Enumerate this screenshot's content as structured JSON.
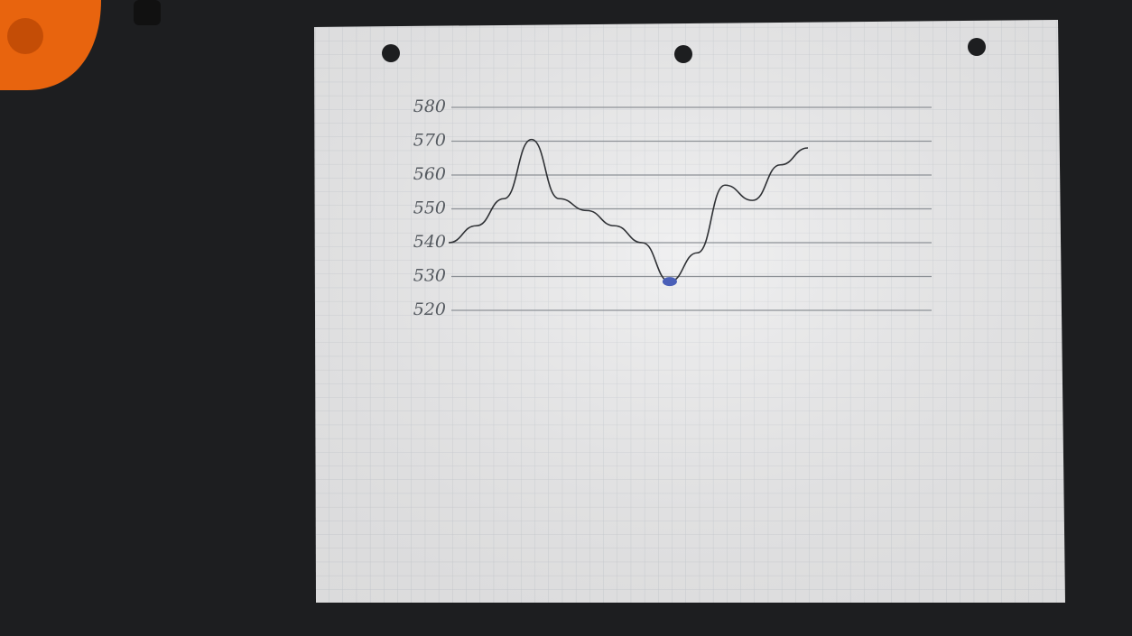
{
  "chart_data": {
    "type": "line",
    "categories": [
      null,
      null,
      null,
      null,
      null,
      null,
      null,
      null,
      null,
      null,
      null,
      null,
      null,
      null
    ],
    "values": [
      540,
      545,
      553,
      570.5,
      553,
      549.5,
      545,
      540,
      528.5,
      537,
      557,
      552.5,
      563,
      568
    ],
    "color": "#2e3034",
    "ylim": [
      520,
      580
    ],
    "yticks": [
      520,
      530,
      540,
      550,
      560,
      570,
      580
    ],
    "grid": true,
    "highlight_point": 8,
    "highlight_color": "#4a5fb8"
  }
}
